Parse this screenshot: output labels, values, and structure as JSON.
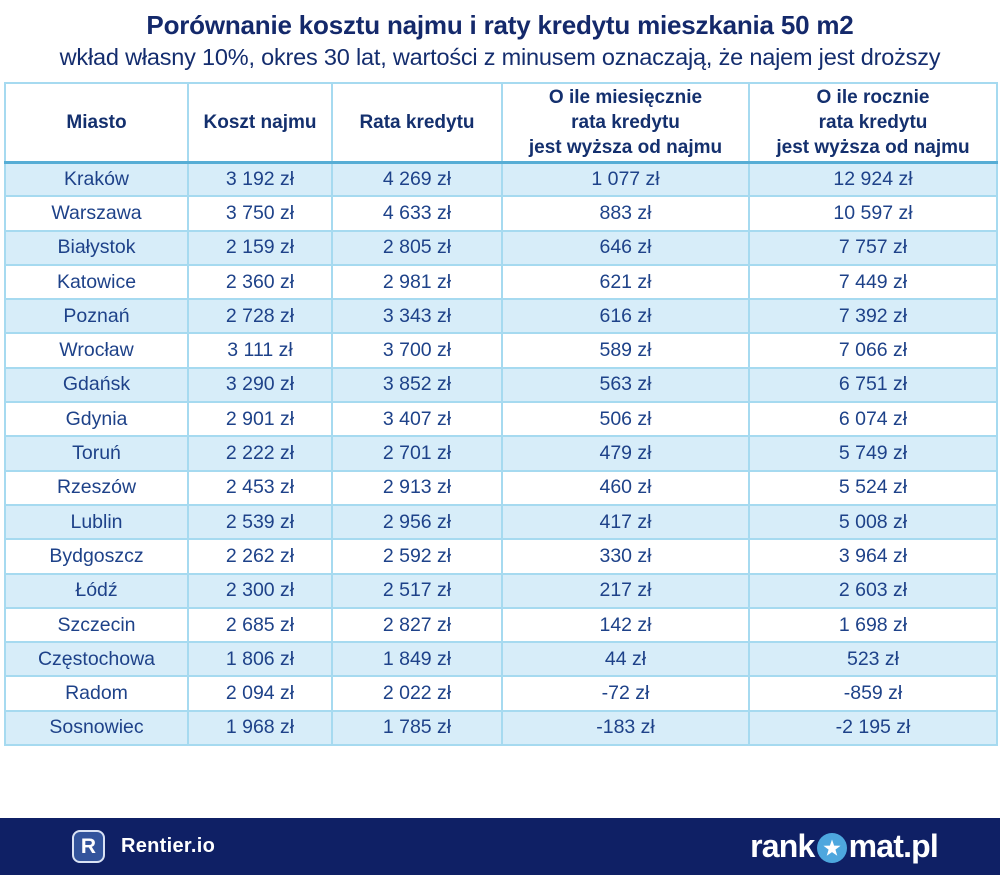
{
  "title": "Porównanie kosztu najmu i raty kredytu mieszkania 50 m2",
  "subtitle": "wkład własny 10%, okres 30 lat, wartości z minusem oznaczają, że najem jest droższy",
  "chart_data": {
    "type": "table",
    "title": "Porównanie kosztu najmu i raty kredytu mieszkania 50 m2",
    "subtitle": "wkład własny 10%, okres 30 lat, wartości z minusem oznaczają, że najem jest droższy",
    "columns": [
      "Miasto",
      "Koszt najmu",
      "Rata kredytu",
      "O ile miesięcznie\nrata kredytu\njest wyższa od najmu",
      "O ile rocznie\nrata kredytu\njest wyższa od najmu"
    ],
    "rows": [
      [
        "Kraków",
        "3 192 zł",
        "4 269 zł",
        "1 077 zł",
        "12 924 zł"
      ],
      [
        "Warszawa",
        "3 750 zł",
        "4 633 zł",
        "883 zł",
        "10 597 zł"
      ],
      [
        "Białystok",
        "2 159 zł",
        "2 805 zł",
        "646 zł",
        "7 757 zł"
      ],
      [
        "Katowice",
        "2 360 zł",
        "2 981 zł",
        "621 zł",
        "7 449 zł"
      ],
      [
        "Poznań",
        "2 728 zł",
        "3 343 zł",
        "616 zł",
        "7 392 zł"
      ],
      [
        "Wrocław",
        "3 111 zł",
        "3 700 zł",
        "589 zł",
        "7 066 zł"
      ],
      [
        "Gdańsk",
        "3 290 zł",
        "3 852 zł",
        "563 zł",
        "6 751 zł"
      ],
      [
        "Gdynia",
        "2 901 zł",
        "3 407 zł",
        "506 zł",
        "6 074 zł"
      ],
      [
        "Toruń",
        "2 222 zł",
        "2 701 zł",
        "479 zł",
        "5 749 zł"
      ],
      [
        "Rzeszów",
        "2 453 zł",
        "2 913 zł",
        "460 zł",
        "5 524 zł"
      ],
      [
        "Lublin",
        "2 539 zł",
        "2 956 zł",
        "417 zł",
        "5 008 zł"
      ],
      [
        "Bydgoszcz",
        "2 262 zł",
        "2 592 zł",
        "330 zł",
        "3 964 zł"
      ],
      [
        "Łódź",
        "2 300 zł",
        "2 517 zł",
        "217 zł",
        "2 603 zł"
      ],
      [
        "Szczecin",
        "2 685 zł",
        "2 827 zł",
        "142 zł",
        "1 698 zł"
      ],
      [
        "Częstochowa",
        "1 806 zł",
        "1 849 zł",
        "44 zł",
        "523 zł"
      ],
      [
        "Radom",
        "2 094 zł",
        "2 022 zł",
        "-72 zł",
        "-859 zł"
      ],
      [
        "Sosnowiec",
        "1 968 zł",
        "1 785 zł",
        "-183 zł",
        "-2 195 zł"
      ]
    ],
    "layout": {
      "zebra_striping": true,
      "first_data_row_shaded": true,
      "all_cells_centered": true
    }
  },
  "colors": {
    "title_navy": "#14296b",
    "cell_text_navy": "#1e4289",
    "row_alt_blue": "#d7edf9",
    "cell_border_blue": "#a6daf0",
    "header_divider_blue": "#56add5",
    "footer_navy": "#0f2065",
    "star_circle_blue": "#4da7de"
  },
  "footer": {
    "rentier_badge_letter": "R",
    "rentier_label": "Rentier.io",
    "rankomat_prefix": "rank",
    "rankomat_suffix": "mat.pl",
    "rankomat_star_icon": "star-in-circle-icon"
  }
}
